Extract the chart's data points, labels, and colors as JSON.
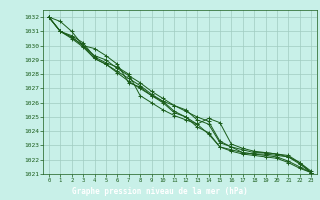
{
  "title": "Graphe pression niveau de la mer (hPa)",
  "bg_color": "#c8f0e8",
  "grid_color": "#a0ccc0",
  "line_color": "#1a5c1a",
  "label_bg_color": "#1a5c1a",
  "label_text_color": "#ffffff",
  "xlim": [
    -0.5,
    23.5
  ],
  "ylim": [
    1021,
    1032.5
  ],
  "xticks": [
    0,
    1,
    2,
    3,
    4,
    5,
    6,
    7,
    8,
    9,
    10,
    11,
    12,
    13,
    14,
    15,
    16,
    17,
    18,
    19,
    20,
    21,
    22,
    23
  ],
  "yticks": [
    1021,
    1022,
    1023,
    1024,
    1025,
    1026,
    1027,
    1028,
    1029,
    1030,
    1031,
    1032
  ],
  "series": [
    [
      1032.0,
      1031.7,
      1031.0,
      1030.0,
      1029.8,
      1029.3,
      1028.7,
      1027.4,
      1027.1,
      1026.5,
      1026.1,
      1025.8,
      1025.5,
      1024.8,
      1024.5,
      1023.2,
      1022.9,
      1022.5,
      1022.4,
      1022.4,
      1022.3,
      1022.2,
      1021.8,
      1021.1
    ],
    [
      1032.0,
      1031.0,
      1030.6,
      1030.0,
      1029.3,
      1029.0,
      1028.4,
      1027.9,
      1027.4,
      1026.8,
      1026.3,
      1025.8,
      1025.4,
      1025.0,
      1024.7,
      1023.3,
      1022.9,
      1022.7,
      1022.5,
      1022.5,
      1022.4,
      1022.3,
      1021.8,
      1021.2
    ],
    [
      1032.0,
      1031.0,
      1030.5,
      1029.9,
      1029.1,
      1028.7,
      1028.1,
      1027.5,
      1027.0,
      1026.5,
      1026.0,
      1025.3,
      1025.0,
      1024.5,
      1024.9,
      1024.6,
      1023.1,
      1022.8,
      1022.6,
      1022.5,
      1022.4,
      1022.2,
      1021.7,
      1021.1
    ],
    [
      1032.0,
      1031.0,
      1030.7,
      1030.2,
      1029.2,
      1028.8,
      1028.5,
      1028.0,
      1026.5,
      1026.0,
      1025.5,
      1025.1,
      1024.8,
      1024.5,
      1023.8,
      1022.9,
      1022.7,
      1022.5,
      1022.4,
      1022.3,
      1022.2,
      1021.9,
      1021.5,
      1021.1
    ],
    [
      1032.0,
      1031.0,
      1030.6,
      1030.0,
      1029.1,
      1028.7,
      1028.2,
      1027.7,
      1027.2,
      1026.6,
      1026.1,
      1025.4,
      1025.0,
      1024.3,
      1023.9,
      1022.9,
      1022.6,
      1022.4,
      1022.3,
      1022.2,
      1022.1,
      1021.8,
      1021.4,
      1021.1
    ]
  ]
}
